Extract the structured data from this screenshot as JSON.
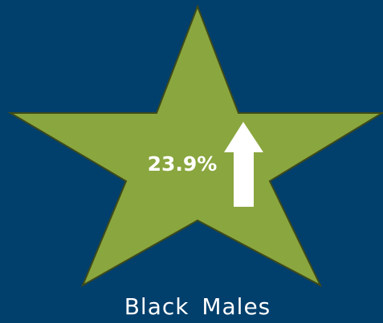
{
  "badge": {
    "value_text": "23.9%",
    "label": "Black Males"
  }
}
